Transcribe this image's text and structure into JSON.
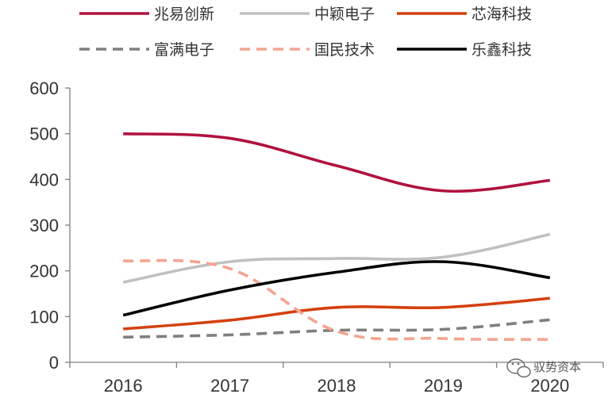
{
  "chart_data": {
    "type": "line",
    "categories": [
      "2016",
      "2017",
      "2018",
      "2019",
      "2020"
    ],
    "ylim": [
      0,
      600
    ],
    "yticks": [
      0,
      100,
      200,
      300,
      400,
      500,
      600
    ],
    "grid": false,
    "legend_position": "top",
    "series": [
      {
        "name": "兆易创新",
        "values": [
          500,
          490,
          430,
          375,
          398
        ],
        "color": "#b0123e",
        "dash": "solid"
      },
      {
        "name": "中颖电子",
        "values": [
          175,
          220,
          227,
          230,
          280
        ],
        "color": "#c0c0c0",
        "dash": "solid"
      },
      {
        "name": "芯海科技",
        "values": [
          73,
          92,
          120,
          120,
          140
        ],
        "color": "#d4400e",
        "dash": "solid"
      },
      {
        "name": "富满电子",
        "values": [
          55,
          60,
          70,
          72,
          93
        ],
        "color": "#7f7f7f",
        "dash": "dashed"
      },
      {
        "name": "国民技术",
        "values": [
          222,
          205,
          68,
          52,
          50
        ],
        "color": "#f4a590",
        "dash": "dashed"
      },
      {
        "name": "乐鑫科技",
        "values": [
          103,
          158,
          197,
          220,
          185
        ],
        "color": "#000000",
        "dash": "solid"
      }
    ]
  },
  "watermark": {
    "text": "驭势资本",
    "icon": "wechat-icon"
  }
}
